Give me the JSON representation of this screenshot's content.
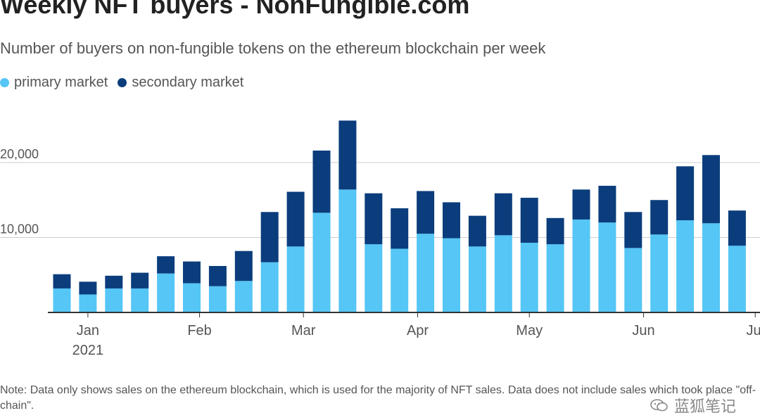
{
  "chart_data": {
    "type": "bar",
    "stacked": true,
    "title": "Weekly NFT buyers - NonFungible.com",
    "subtitle": "Number of buyers on non-fungible tokens on the ethereum blockchain per week",
    "series": [
      {
        "name": "primary market",
        "color": "#55c6f5",
        "values": [
          3200,
          2400,
          3200,
          3200,
          5200,
          3900,
          3500,
          4200,
          6700,
          8800,
          13300,
          16400,
          9100,
          8500,
          10500,
          9900,
          8800,
          10300,
          9300,
          9100,
          12400,
          12000,
          8600,
          10400,
          12300,
          11900,
          8900
        ]
      },
      {
        "name": "secondary market",
        "color": "#0b3d7c",
        "values": [
          1900,
          1700,
          1700,
          2100,
          2300,
          2900,
          2700,
          4000,
          6700,
          7300,
          8300,
          9200,
          6800,
          5400,
          5700,
          4800,
          4100,
          5600,
          6000,
          3500,
          4000,
          4900,
          4800,
          4600,
          7200,
          9100,
          4700
        ]
      }
    ],
    "x_ticks": [
      {
        "label": "Jan",
        "sublabel": "2021",
        "pos": 1
      },
      {
        "label": "Feb",
        "pos": 5.3
      },
      {
        "label": "Mar",
        "pos": 9.3
      },
      {
        "label": "Apr",
        "pos": 13.7
      },
      {
        "label": "May",
        "pos": 18
      },
      {
        "label": "Jun",
        "pos": 22.4
      },
      {
        "label": "Jul",
        "pos": 26.7
      }
    ],
    "y_ticks": [
      {
        "label": "10,000",
        "value": 10000
      },
      {
        "label": "20,000",
        "value": 20000
      }
    ],
    "ylim": [
      0,
      27000
    ],
    "grid": true,
    "legend_position": "top-left"
  },
  "note": "Note: Data only shows sales on the ethereum blockchain, which is used for the majority of NFT sales. Data does not include sales which took place \"off-chain\".",
  "watermark": "蓝狐笔记"
}
